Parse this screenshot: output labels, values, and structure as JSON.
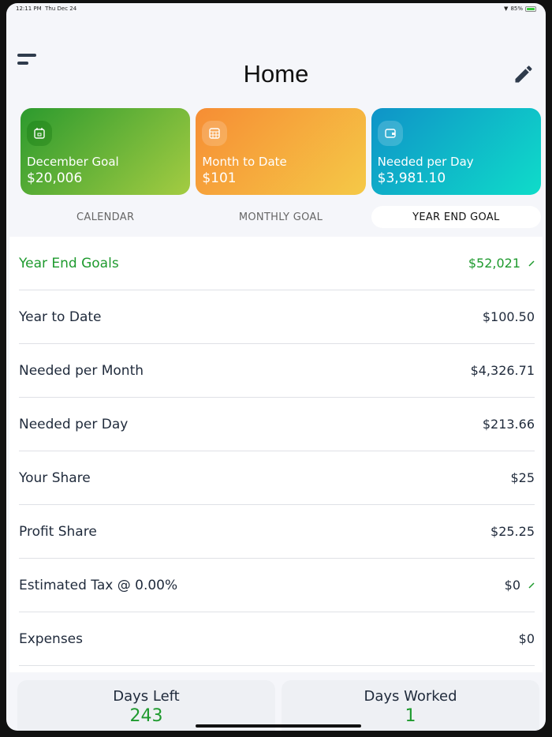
{
  "status": {
    "time": "12:11 PM",
    "date": "Thu Dec 24",
    "battery": "85%"
  },
  "header": {
    "title": "Home",
    "menu_icon": "menu-icon",
    "edit_icon": "pencil-icon"
  },
  "cards": [
    {
      "label": "December Goal",
      "value": "$20,006",
      "icon": "calendar-icon",
      "color": "#2c9a2e"
    },
    {
      "label": "Month to Date",
      "value": "$101",
      "icon": "calendar-grid-icon",
      "color": "#f68d34"
    },
    {
      "label": "Needed per Day",
      "value": "$3,981.10",
      "icon": "wallet-icon",
      "color": "#0f93c8"
    }
  ],
  "tabs": [
    {
      "label": "CALENDAR"
    },
    {
      "label": "MONTHLY GOAL"
    },
    {
      "label": "YEAR END GOAL",
      "active": true
    }
  ],
  "rows": [
    {
      "label": "Year End Goals",
      "value": "$52,021",
      "editable": true
    },
    {
      "label": "Year to Date",
      "value": "$100.50"
    },
    {
      "label": "Needed per Month",
      "value": "$4,326.71"
    },
    {
      "label": "Needed per Day",
      "value": "$213.66"
    },
    {
      "label": "Your Share",
      "value": "$25"
    },
    {
      "label": "Profit Share",
      "value": "$25.25"
    },
    {
      "label": "Estimated Tax @ 0.00%",
      "value": "$0",
      "editable": true
    },
    {
      "label": "Expenses",
      "value": "$0"
    }
  ],
  "days": [
    {
      "label": "Days Left",
      "value": "243"
    },
    {
      "label": "Days Worked",
      "value": "1"
    }
  ],
  "colors": {
    "accent_green": "#1e9a2e",
    "text": "#1f2a3b"
  }
}
